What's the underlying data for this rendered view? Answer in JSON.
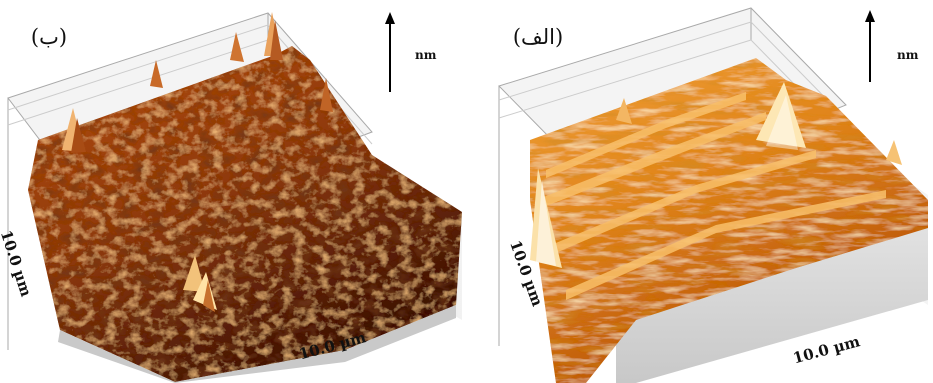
{
  "figure": {
    "panels": [
      {
        "label": "(ب)",
        "unit": "nm",
        "x_axis_label": "10.0 µm",
        "y_axis_label": "10.0 µm",
        "surface_colors": {
          "dark": "#3a1004",
          "mid": "#9a3e0c",
          "light": "#e3822e"
        }
      },
      {
        "label": "(الف)",
        "unit": "nm",
        "x_axis_label": "10.0 µm",
        "y_axis_label": "10.0 µm",
        "surface_colors": {
          "dark": "#b14a07",
          "mid": "#e08414",
          "light": "#fbd27a"
        }
      }
    ]
  }
}
